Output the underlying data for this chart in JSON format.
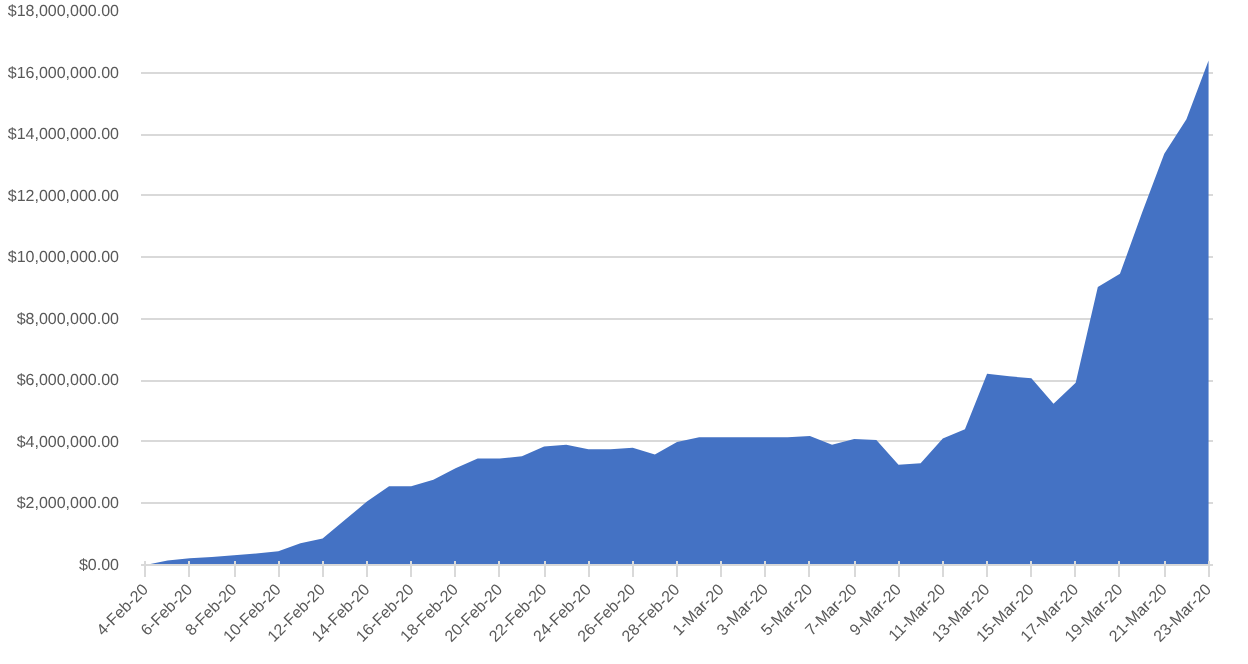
{
  "chart_data": {
    "type": "area",
    "color": "#4472c4",
    "grid": "y",
    "categories": [
      "4-Feb-20",
      null,
      "6-Feb-20",
      null,
      "8-Feb-20",
      null,
      "10-Feb-20",
      null,
      "12-Feb-20",
      null,
      "14-Feb-20",
      null,
      "16-Feb-20",
      null,
      "18-Feb-20",
      null,
      "20-Feb-20",
      null,
      "22-Feb-20",
      null,
      "24-Feb-20",
      null,
      "26-Feb-20",
      null,
      "28-Feb-20",
      null,
      "1-Mar-20",
      null,
      "3-Mar-20",
      null,
      "5-Mar-20",
      null,
      "7-Mar-20",
      null,
      "9-Mar-20",
      null,
      "11-Mar-20",
      null,
      "13-Mar-20",
      null,
      "15-Mar-20",
      null,
      "17-Mar-20",
      null,
      "19-Mar-20",
      null,
      "21-Mar-20",
      null,
      "23-Mar-20"
    ],
    "values": [
      0,
      150000,
      220000,
      260000,
      320000,
      370000,
      450000,
      710000,
      860000,
      1460000,
      2060000,
      2560000,
      2560000,
      2770000,
      3140000,
      3460000,
      3460000,
      3530000,
      3850000,
      3910000,
      3760000,
      3760000,
      3810000,
      3590000,
      4000000,
      4150000,
      4150000,
      4150000,
      4150000,
      4150000,
      4190000,
      3910000,
      4090000,
      4060000,
      3260000,
      3310000,
      4110000,
      4410000,
      6210000,
      6130000,
      6070000,
      5240000,
      5920000,
      9030000,
      9460000,
      11450000,
      13360000,
      14480000,
      16390000
    ],
    "ylim": [
      0,
      18000000
    ],
    "yticks": [
      {
        "value": 0,
        "label": "$0.00"
      },
      {
        "value": 2000000,
        "label": "$2,000,000.00"
      },
      {
        "value": 4000000,
        "label": "$4,000,000.00"
      },
      {
        "value": 6000000,
        "label": "$6,000,000.00"
      },
      {
        "value": 8000000,
        "label": "$8,000,000.00"
      },
      {
        "value": 10000000,
        "label": "$10,000,000.00"
      },
      {
        "value": 12000000,
        "label": "$12,000,000.00"
      },
      {
        "value": 14000000,
        "label": "$14,000,000.00"
      },
      {
        "value": 16000000,
        "label": "$16,000,000.00"
      },
      {
        "value": 18000000,
        "label": "$18,000,000.00"
      }
    ]
  }
}
